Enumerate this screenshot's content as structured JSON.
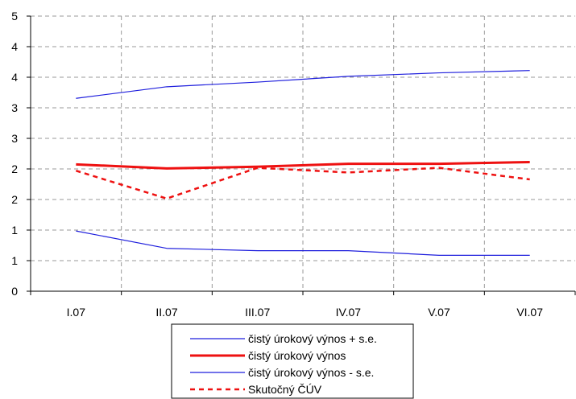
{
  "chart_data": {
    "type": "line",
    "categories": [
      "I.07",
      "II.07",
      "III.07",
      "IV.07",
      "V.07",
      "VI.07"
    ],
    "y_tick_labels": [
      "0",
      "1",
      "1",
      "2",
      "2",
      "3",
      "3",
      "4",
      "4",
      "5"
    ],
    "ylim": [
      0,
      4.75
    ],
    "grid": true,
    "legend_position": "bottom",
    "series": [
      {
        "name": "čistý úrokový výnos + s.e.",
        "values": [
          3.33,
          3.53,
          3.61,
          3.71,
          3.77,
          3.81
        ],
        "color": "#1f1fdd",
        "style": "solid",
        "weight": "thin"
      },
      {
        "name": "čistý úrokový výnos",
        "values": [
          2.19,
          2.12,
          2.15,
          2.2,
          2.2,
          2.23
        ],
        "color": "#ee1111",
        "style": "solid",
        "weight": "thick"
      },
      {
        "name": "čistý úrokový výnos - s.e.",
        "values": [
          1.04,
          0.74,
          0.7,
          0.7,
          0.62,
          0.62
        ],
        "color": "#1f1fdd",
        "style": "solid",
        "weight": "thin"
      },
      {
        "name": "Skutočný ČÚV",
        "values": [
          2.08,
          1.6,
          2.13,
          2.05,
          2.13,
          1.93
        ],
        "color": "#ee1111",
        "style": "dashed",
        "weight": "medium"
      }
    ]
  }
}
